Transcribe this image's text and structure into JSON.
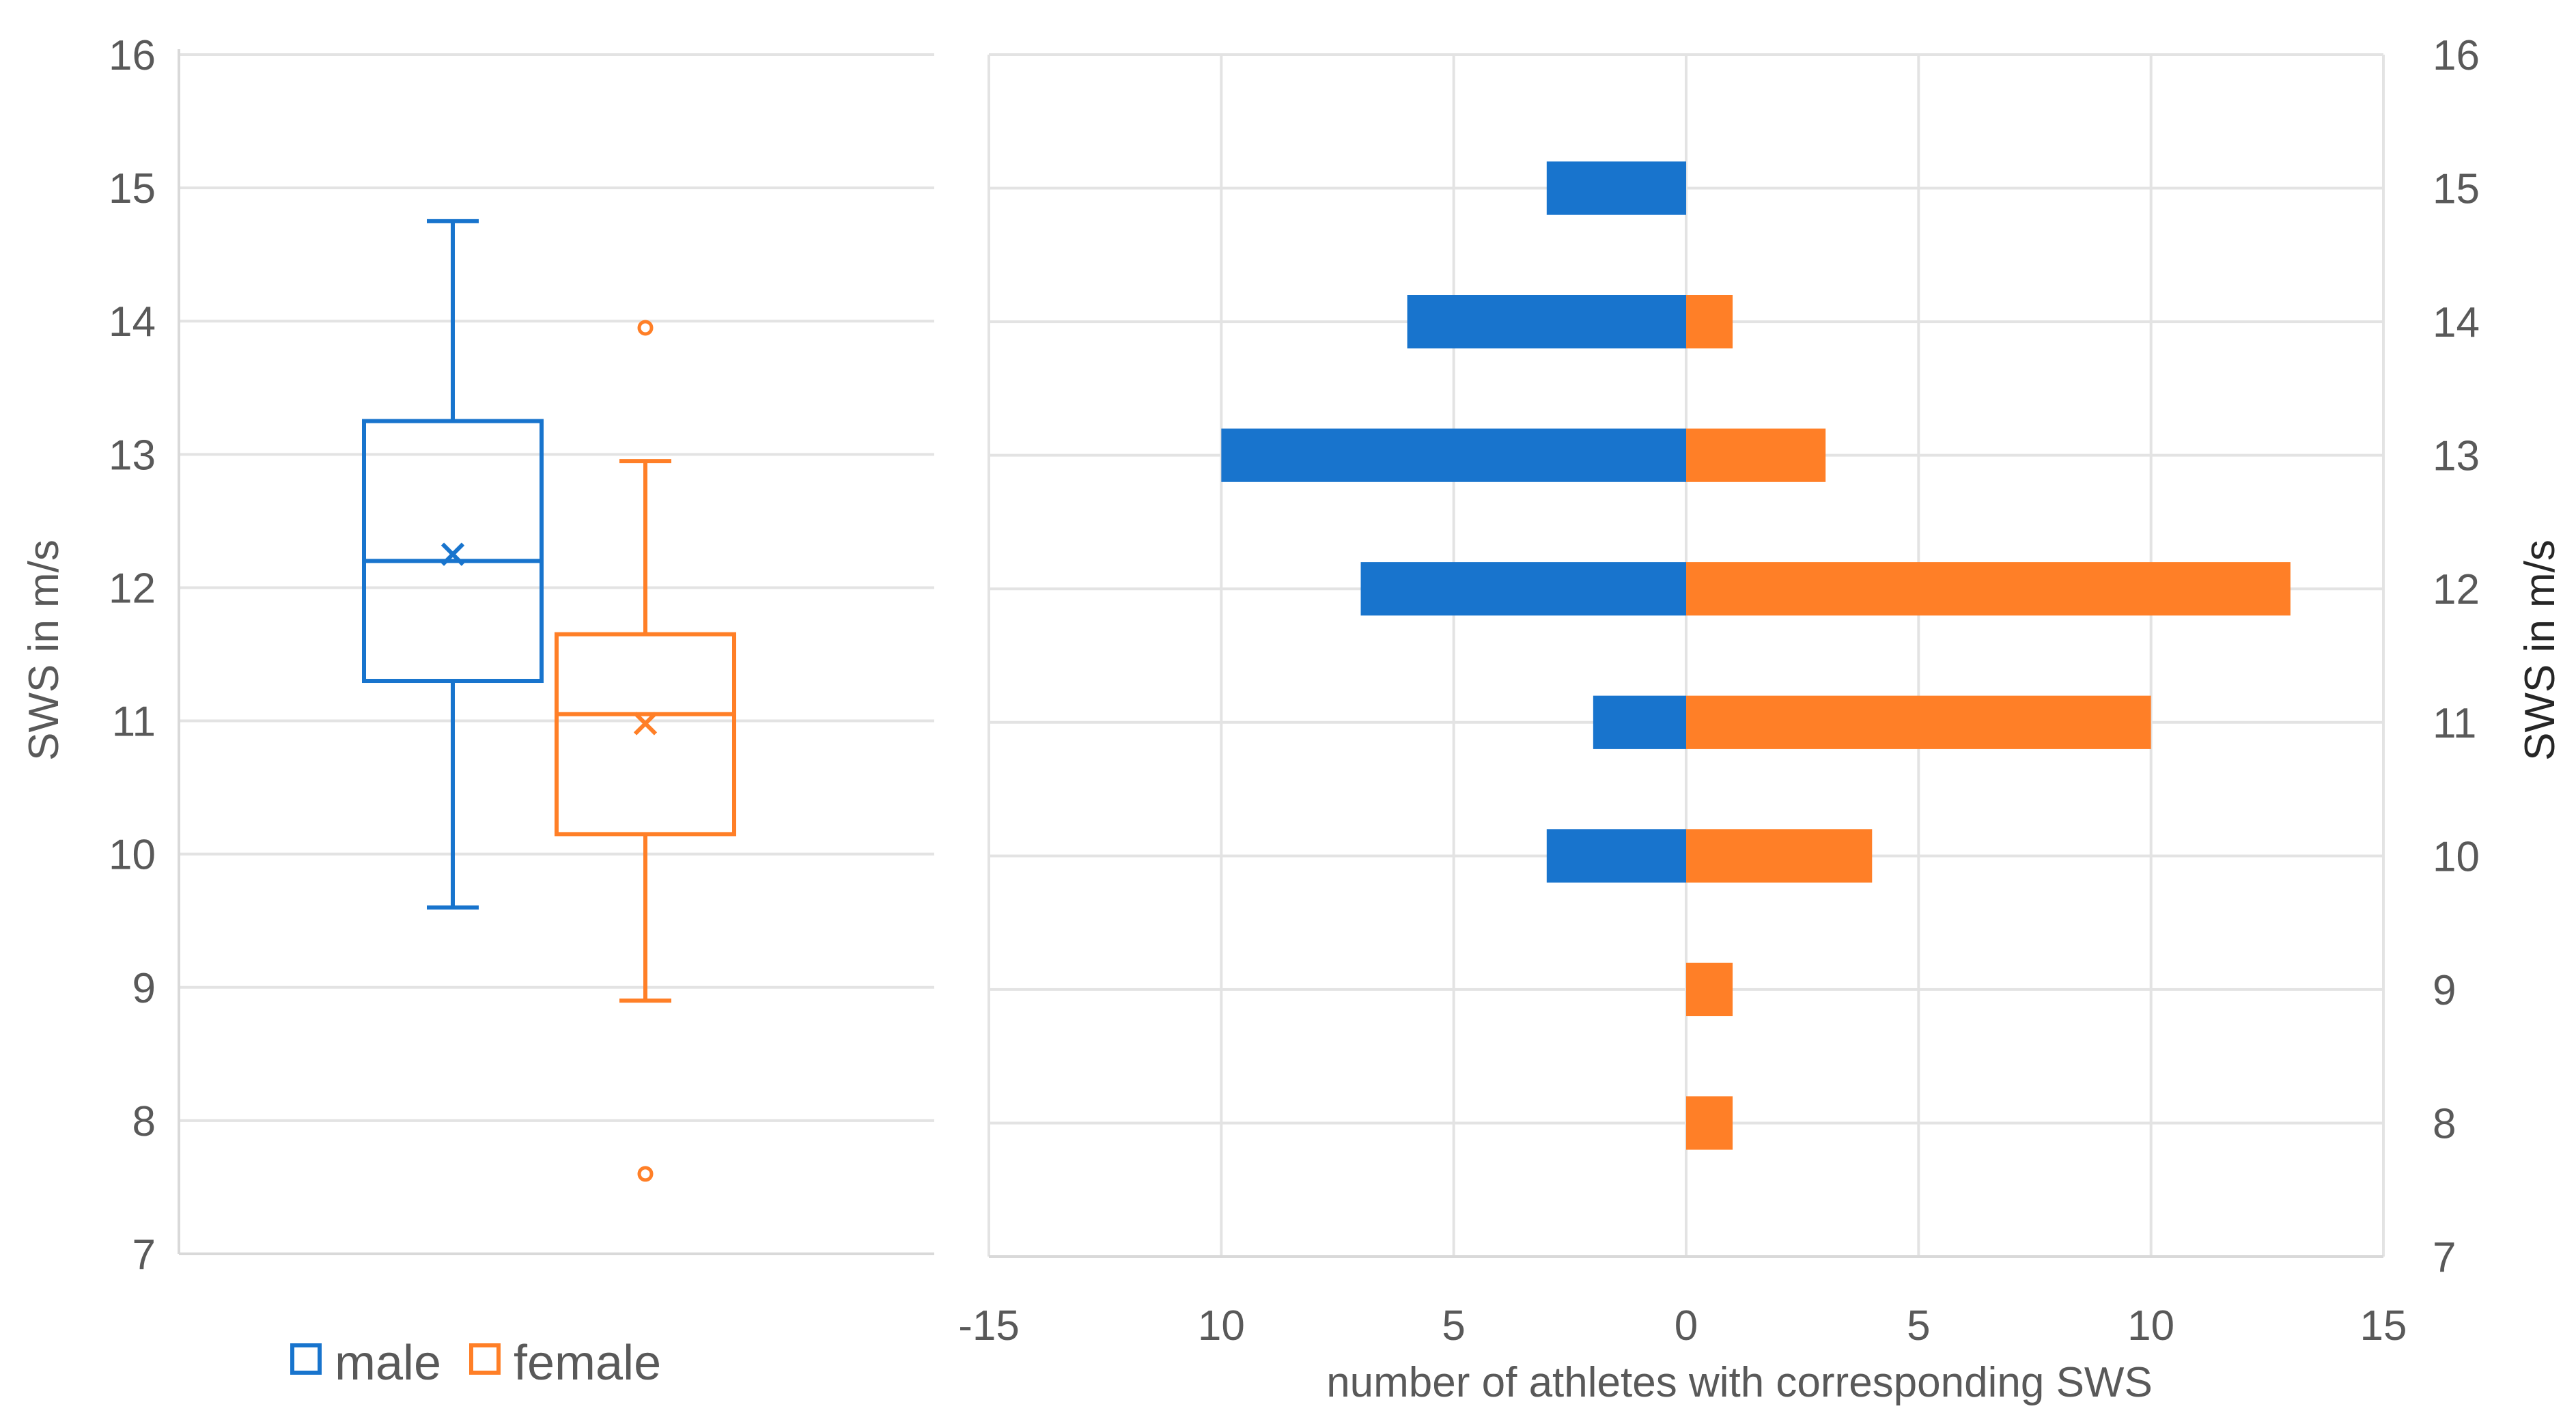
{
  "chart_data": [
    {
      "type": "box",
      "ylabel": "SWS in m/s",
      "ylim": [
        7,
        16
      ],
      "yticks": [
        "7",
        "8",
        "9",
        "10",
        "11",
        "12",
        "13",
        "14",
        "15",
        "16"
      ],
      "grid": true,
      "legend": {
        "placement": "bottom",
        "entries": [
          {
            "label": "male",
            "color": "#1874CD"
          },
          {
            "label": "female",
            "color": "#FF7F27"
          }
        ]
      },
      "series": [
        {
          "name": "male",
          "color": "#1874CD",
          "whisker_low": 9.6,
          "q1": 11.3,
          "median": 12.2,
          "mean": 12.25,
          "q3": 13.25,
          "whisker_high": 14.75,
          "outliers": []
        },
        {
          "name": "female",
          "color": "#FF7F27",
          "whisker_low": 8.9,
          "q1": 10.15,
          "median": 11.05,
          "mean": 10.98,
          "q3": 11.65,
          "whisker_high": 12.95,
          "outliers": [
            13.95,
            7.6
          ]
        }
      ]
    },
    {
      "type": "bar",
      "orientation": "horizontal",
      "xlabel": "number of athletes with corresponding SWS",
      "ylabel": "SWS in m/s",
      "xlim": [
        -15,
        15
      ],
      "xticks": [
        "-15",
        "10",
        "5",
        "0",
        "5",
        "10",
        "15"
      ],
      "ylim": [
        7,
        16
      ],
      "yticks": [
        "7",
        "8",
        "9",
        "10",
        "11",
        "12",
        "13",
        "14",
        "15",
        "16"
      ],
      "grid": true,
      "categories": [
        15,
        14,
        13,
        12,
        11,
        10,
        9,
        8
      ],
      "series": [
        {
          "name": "male",
          "color": "#1874CD",
          "values": [
            3,
            6,
            10,
            7,
            2,
            3,
            0,
            0
          ]
        },
        {
          "name": "female",
          "color": "#FF7F27",
          "values": [
            0,
            1,
            3,
            13,
            10,
            4,
            1,
            1
          ]
        }
      ]
    }
  ]
}
